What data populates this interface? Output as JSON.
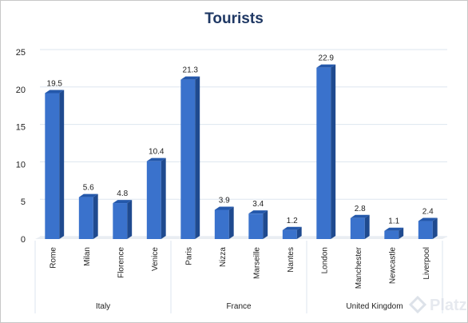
{
  "colors": {
    "bar_front": "#3a72cc",
    "bar_side": "#1f4a8f",
    "bar_top": "#2458ab",
    "title": "#1f3864",
    "text": "#222222",
    "grid": "#dde6ef",
    "frame": "#c8c8c8",
    "watermark": "#d8dee6"
  },
  "chart_data": {
    "type": "bar",
    "title": "Tourists",
    "xlabel": "",
    "ylabel": "",
    "ylim": [
      0,
      25
    ],
    "yticks": [
      "0",
      "5",
      "10",
      "15",
      "20",
      "25"
    ],
    "grid": true,
    "legend": "none",
    "categories": [
      "Rome",
      "Milan",
      "Florence",
      "Venice",
      "Paris",
      "Nizza",
      "Marseille",
      "Nantes",
      "London",
      "Manchester",
      "Newcastle",
      "Liverpool"
    ],
    "values": [
      19.5,
      5.6,
      4.8,
      10.4,
      21.3,
      3.9,
      3.4,
      1.2,
      22.9,
      2.8,
      1.1,
      2.4
    ],
    "value_labels": [
      "19.5",
      "5.6",
      "4.8",
      "10.4",
      "21.3",
      "3.9",
      "3.4",
      "1.2",
      "22.9",
      "2.8",
      "1.1",
      "2.4"
    ],
    "groups": [
      {
        "name": "Italy",
        "count": 4
      },
      {
        "name": "France",
        "count": 4
      },
      {
        "name": "United Kingdom",
        "count": 4
      }
    ]
  },
  "watermark": {
    "text": "Platzi",
    "icon": "platzi-logo-icon"
  }
}
